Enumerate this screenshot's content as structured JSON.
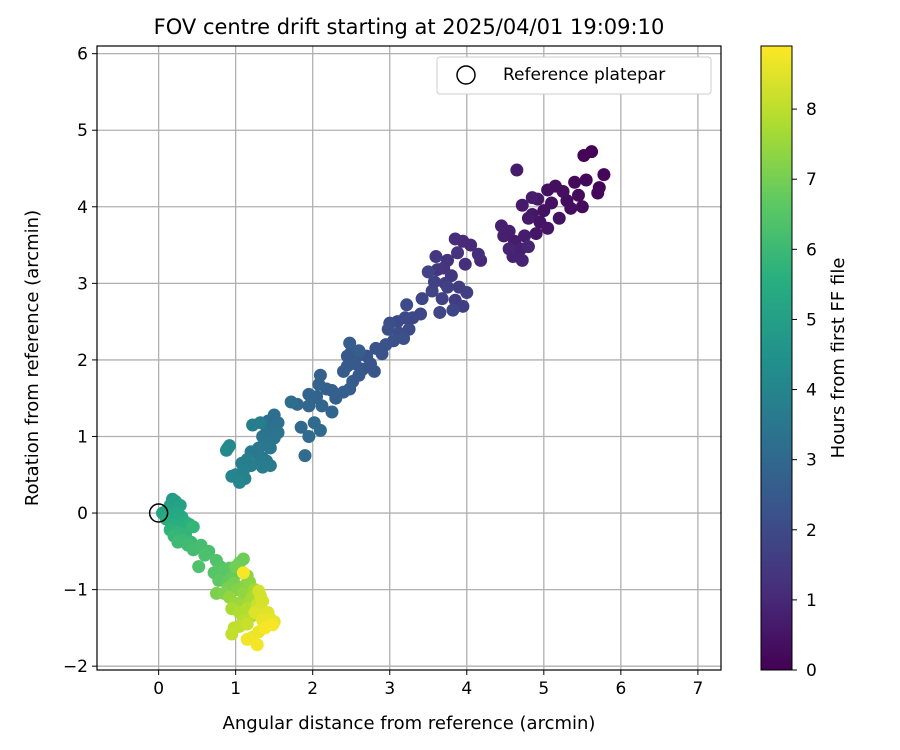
{
  "chart_data": {
    "type": "scatter",
    "title": "FOV centre drift starting at 2025/04/01 19:09:10",
    "xlabel": "Angular distance from reference (arcmin)",
    "ylabel": "Rotation from reference (arcmin)",
    "xlim": [
      -0.8,
      7.3
    ],
    "ylim": [
      -2.05,
      6.1
    ],
    "xticks": [
      0,
      1,
      2,
      3,
      4,
      5,
      6,
      7
    ],
    "yticks": [
      -2,
      -1,
      0,
      1,
      2,
      3,
      4,
      5,
      6
    ],
    "grid": true,
    "legend": {
      "position": "upper right",
      "entries": [
        "Reference platepar"
      ]
    },
    "reference_point": {
      "name": "Reference platepar",
      "x": 0.0,
      "y": 0.0,
      "marker": "open-circle"
    },
    "colormap": "viridis",
    "colorbar": {
      "label": "Hours from first FF file",
      "range": [
        0,
        8.9
      ],
      "ticks": [
        0,
        1,
        2,
        3,
        4,
        5,
        6,
        7,
        8
      ]
    },
    "points": [
      [
        5.62,
        4.72,
        0.05
      ],
      [
        5.52,
        4.67,
        0.08
      ],
      [
        5.72,
        4.25,
        0.1
      ],
      [
        5.78,
        4.42,
        0.12
      ],
      [
        5.7,
        4.18,
        0.15
      ],
      [
        5.55,
        4.35,
        0.18
      ],
      [
        5.4,
        4.32,
        0.2
      ],
      [
        5.45,
        4.15,
        0.22
      ],
      [
        5.3,
        4.08,
        0.25
      ],
      [
        5.5,
        4.0,
        0.28
      ],
      [
        5.35,
        3.98,
        0.3
      ],
      [
        5.25,
        4.2,
        0.32
      ],
      [
        5.15,
        4.27,
        0.35
      ],
      [
        5.05,
        4.22,
        0.38
      ],
      [
        5.1,
        4.05,
        0.4
      ],
      [
        5.0,
        3.95,
        0.42
      ],
      [
        5.2,
        3.85,
        0.45
      ],
      [
        4.95,
        3.8,
        0.48
      ],
      [
        5.05,
        3.72,
        0.5
      ],
      [
        4.9,
        3.65,
        0.52
      ],
      [
        4.85,
        3.9,
        0.55
      ],
      [
        4.92,
        4.1,
        0.58
      ],
      [
        4.8,
        3.85,
        0.6
      ],
      [
        4.72,
        4.02,
        0.62
      ],
      [
        4.65,
        4.48,
        0.65
      ],
      [
        4.85,
        4.12,
        0.68
      ],
      [
        4.75,
        3.62,
        0.7
      ],
      [
        4.62,
        3.55,
        0.72
      ],
      [
        4.55,
        3.68,
        0.75
      ],
      [
        4.48,
        3.62,
        0.78
      ],
      [
        4.45,
        3.75,
        0.8
      ],
      [
        4.7,
        3.45,
        0.82
      ],
      [
        4.6,
        3.35,
        0.85
      ],
      [
        4.72,
        3.3,
        0.88
      ],
      [
        4.8,
        3.48,
        0.9
      ],
      [
        4.55,
        3.45,
        0.92
      ],
      [
        4.18,
        3.3,
        0.98
      ],
      [
        4.05,
        3.5,
        1.0
      ],
      [
        3.95,
        3.55,
        1.05
      ],
      [
        3.85,
        3.58,
        1.1
      ],
      [
        4.15,
        3.38,
        1.15
      ],
      [
        3.98,
        3.25,
        1.2
      ],
      [
        3.88,
        3.4,
        1.25
      ],
      [
        3.75,
        3.3,
        1.3
      ],
      [
        3.7,
        3.2,
        1.35
      ],
      [
        3.62,
        3.18,
        1.4
      ],
      [
        3.6,
        3.35,
        1.42
      ],
      [
        3.8,
        3.1,
        1.45
      ],
      [
        3.72,
        3.0,
        1.5
      ],
      [
        3.9,
        2.95,
        1.55
      ],
      [
        3.85,
        2.78,
        1.6
      ],
      [
        4.0,
        2.88,
        1.62
      ],
      [
        3.95,
        2.7,
        1.65
      ],
      [
        3.68,
        2.8,
        1.7
      ],
      [
        3.75,
        2.95,
        1.72
      ],
      [
        3.58,
        3.02,
        1.75
      ],
      [
        3.5,
        3.15,
        1.78
      ],
      [
        3.55,
        2.9,
        1.8
      ],
      [
        3.42,
        2.8,
        1.82
      ],
      [
        3.82,
        2.65,
        1.85
      ],
      [
        3.65,
        2.62,
        1.88
      ],
      [
        3.4,
        2.6,
        1.9
      ],
      [
        3.3,
        2.55,
        1.92
      ],
      [
        3.2,
        2.55,
        1.95
      ],
      [
        3.1,
        2.5,
        1.98
      ],
      [
        3.22,
        2.72,
        2.0
      ],
      [
        3.25,
        2.4,
        2.05
      ],
      [
        3.12,
        2.35,
        2.08
      ],
      [
        3.0,
        2.48,
        2.1
      ],
      [
        2.98,
        2.4,
        2.12
      ],
      [
        3.18,
        2.28,
        2.15
      ],
      [
        3.05,
        2.25,
        2.18
      ],
      [
        2.95,
        2.2,
        2.22
      ],
      [
        2.9,
        2.08,
        2.25
      ],
      [
        2.82,
        2.15,
        2.28
      ],
      [
        2.7,
        2.05,
        2.3
      ],
      [
        2.75,
        1.95,
        2.32
      ],
      [
        2.65,
        1.88,
        2.35
      ],
      [
        2.8,
        1.85,
        2.38
      ],
      [
        2.58,
        2.05,
        2.4
      ],
      [
        2.5,
        2.1,
        2.42
      ],
      [
        2.45,
        2.05,
        2.45
      ],
      [
        2.55,
        1.95,
        2.48
      ],
      [
        2.45,
        1.92,
        2.5
      ],
      [
        2.6,
        1.8,
        2.52
      ],
      [
        2.52,
        1.72,
        2.55
      ],
      [
        2.4,
        1.85,
        2.58
      ],
      [
        2.48,
        2.22,
        2.6
      ],
      [
        2.6,
        2.12,
        2.62
      ],
      [
        2.48,
        1.62,
        2.65
      ],
      [
        2.4,
        1.58,
        2.68
      ],
      [
        2.3,
        1.5,
        2.7
      ],
      [
        2.25,
        1.6,
        2.72
      ],
      [
        2.18,
        1.62,
        2.75
      ],
      [
        2.1,
        1.8,
        2.78
      ],
      [
        2.08,
        1.68,
        2.8
      ],
      [
        2.05,
        1.52,
        2.82
      ],
      [
        1.95,
        1.55,
        2.85
      ],
      [
        2.0,
        1.5,
        2.88
      ],
      [
        2.25,
        1.32,
        2.9
      ],
      [
        2.12,
        1.4,
        2.92
      ],
      [
        1.95,
        1.4,
        2.95
      ],
      [
        1.8,
        1.42,
        2.98
      ],
      [
        1.85,
        1.12,
        3.0
      ],
      [
        2.02,
        1.18,
        3.05
      ],
      [
        2.1,
        1.08,
        3.08
      ],
      [
        1.95,
        1.0,
        3.1
      ],
      [
        1.9,
        0.75,
        3.12
      ],
      [
        1.72,
        1.45,
        3.15
      ],
      [
        1.5,
        1.28,
        3.2
      ],
      [
        1.42,
        1.2,
        3.25
      ],
      [
        1.55,
        1.18,
        3.3
      ],
      [
        1.48,
        1.1,
        3.35
      ],
      [
        1.4,
        1.05,
        3.38
      ],
      [
        1.55,
        1.05,
        3.4
      ],
      [
        1.35,
        1.0,
        3.42
      ],
      [
        1.5,
        0.98,
        3.45
      ],
      [
        1.42,
        0.92,
        3.48
      ],
      [
        1.45,
        0.85,
        3.5
      ],
      [
        1.3,
        0.85,
        3.52
      ],
      [
        1.35,
        0.72,
        3.55
      ],
      [
        1.28,
        0.78,
        3.58
      ],
      [
        1.2,
        0.8,
        3.6
      ],
      [
        1.4,
        0.68,
        3.62
      ],
      [
        1.45,
        0.62,
        3.65
      ],
      [
        1.35,
        0.6,
        3.68
      ],
      [
        1.3,
        0.65,
        3.7
      ],
      [
        1.22,
        1.15,
        3.72
      ],
      [
        1.32,
        1.18,
        3.75
      ],
      [
        1.2,
        0.62,
        3.78
      ],
      [
        1.15,
        0.7,
        3.8
      ],
      [
        1.08,
        0.65,
        3.82
      ],
      [
        1.1,
        0.55,
        3.85
      ],
      [
        1.05,
        0.48,
        3.88
      ],
      [
        1.12,
        0.45,
        3.9
      ],
      [
        1.0,
        0.5,
        3.95
      ],
      [
        0.95,
        0.48,
        4.0
      ],
      [
        1.05,
        0.4,
        4.05
      ],
      [
        0.9,
        0.85,
        4.1
      ],
      [
        0.92,
        0.88,
        4.15
      ],
      [
        0.88,
        0.82,
        4.2
      ],
      [
        0.18,
        0.18,
        4.8
      ],
      [
        0.22,
        0.15,
        4.9
      ],
      [
        0.15,
        0.1,
        5.0
      ],
      [
        0.28,
        0.1,
        5.05
      ],
      [
        0.12,
        0.05,
        5.1
      ],
      [
        0.2,
        0.02,
        5.15
      ],
      [
        0.05,
        0.0,
        5.2
      ],
      [
        0.25,
        0.0,
        5.25
      ],
      [
        0.15,
        -0.02,
        5.3
      ],
      [
        0.3,
        -0.05,
        5.35
      ],
      [
        0.22,
        -0.08,
        5.4
      ],
      [
        0.1,
        -0.08,
        5.45
      ],
      [
        0.35,
        -0.12,
        5.5
      ],
      [
        0.18,
        -0.15,
        5.55
      ],
      [
        0.28,
        -0.18,
        5.6
      ],
      [
        0.4,
        -0.15,
        5.65
      ],
      [
        0.15,
        -0.22,
        5.7
      ],
      [
        0.25,
        -0.25,
        5.75
      ],
      [
        0.35,
        -0.28,
        5.8
      ],
      [
        0.45,
        -0.18,
        5.85
      ],
      [
        0.2,
        -0.3,
        5.9
      ],
      [
        0.3,
        -0.35,
        5.95
      ],
      [
        0.42,
        -0.38,
        6.0
      ],
      [
        0.25,
        -0.38,
        6.05
      ],
      [
        0.38,
        -0.42,
        6.1
      ],
      [
        0.45,
        -0.48,
        6.15
      ],
      [
        0.55,
        -0.42,
        6.2
      ],
      [
        0.65,
        -0.5,
        6.25
      ],
      [
        0.6,
        -0.55,
        6.3
      ],
      [
        0.52,
        -0.7,
        6.35
      ],
      [
        0.75,
        -0.62,
        6.4
      ],
      [
        0.8,
        -0.7,
        6.45
      ],
      [
        0.72,
        -0.78,
        6.5
      ],
      [
        0.85,
        -0.75,
        6.55
      ],
      [
        0.92,
        -0.72,
        6.6
      ],
      [
        0.78,
        -0.88,
        6.65
      ],
      [
        0.88,
        -0.9,
        6.7
      ],
      [
        1.0,
        -0.8,
        6.75
      ],
      [
        0.95,
        -0.85,
        6.8
      ],
      [
        1.05,
        -0.65,
        6.85
      ],
      [
        1.1,
        -0.6,
        6.9
      ],
      [
        1.0,
        -0.7,
        6.95
      ],
      [
        0.98,
        -0.92,
        7.0
      ],
      [
        0.9,
        -0.98,
        7.05
      ],
      [
        0.75,
        -1.05,
        7.1
      ],
      [
        0.85,
        -1.05,
        7.15
      ],
      [
        1.02,
        -1.0,
        7.2
      ],
      [
        1.12,
        -0.95,
        7.25
      ],
      [
        1.15,
        -0.82,
        7.3
      ],
      [
        1.18,
        -0.9,
        7.35
      ],
      [
        1.1,
        -1.05,
        7.4
      ],
      [
        0.92,
        -1.1,
        7.45
      ],
      [
        1.0,
        -1.18,
        7.5
      ],
      [
        1.08,
        -1.2,
        7.55
      ],
      [
        1.18,
        -1.15,
        7.6
      ],
      [
        1.25,
        -1.0,
        7.65
      ],
      [
        1.22,
        -1.1,
        7.7
      ],
      [
        0.95,
        -1.25,
        7.75
      ],
      [
        1.05,
        -1.3,
        7.8
      ],
      [
        1.15,
        -1.25,
        7.85
      ],
      [
        1.2,
        -1.35,
        7.9
      ],
      [
        1.1,
        -1.4,
        7.95
      ],
      [
        0.98,
        -1.5,
        8.0
      ],
      [
        1.05,
        -1.48,
        8.05
      ],
      [
        0.95,
        -1.58,
        8.1
      ],
      [
        1.15,
        -1.45,
        8.15
      ],
      [
        1.28,
        -1.2,
        8.2
      ],
      [
        1.32,
        -1.08,
        8.25
      ],
      [
        1.3,
        -1.02,
        8.3
      ],
      [
        1.35,
        -1.15,
        8.35
      ],
      [
        1.32,
        -1.25,
        8.4
      ],
      [
        1.25,
        -1.3,
        8.45
      ],
      [
        1.42,
        -1.3,
        8.5
      ],
      [
        1.45,
        -1.38,
        8.55
      ],
      [
        1.5,
        -1.42,
        8.6
      ],
      [
        1.35,
        -1.4,
        8.62
      ],
      [
        1.3,
        -1.55,
        8.65
      ],
      [
        1.22,
        -1.62,
        8.7
      ],
      [
        1.15,
        -1.65,
        8.72
      ],
      [
        1.28,
        -1.72,
        8.75
      ],
      [
        1.38,
        -1.5,
        8.8
      ],
      [
        1.48,
        -1.46,
        8.82
      ],
      [
        1.1,
        -0.78,
        8.85
      ]
    ]
  }
}
